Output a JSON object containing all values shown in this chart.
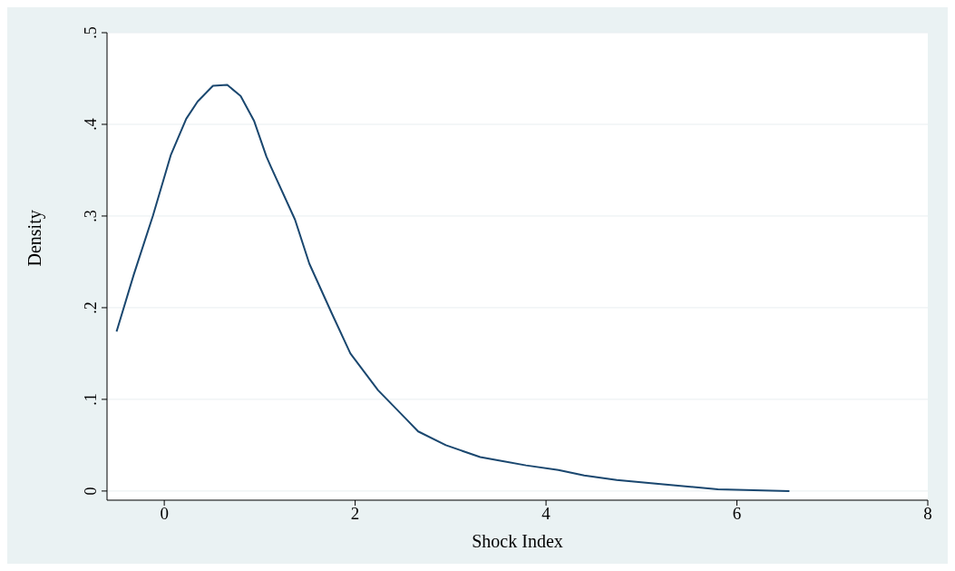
{
  "chart_data": {
    "type": "line",
    "xlabel": "Shock Index",
    "ylabel": "Density",
    "x": [
      -0.5,
      -0.32,
      -0.12,
      0.07,
      0.23,
      0.35,
      0.51,
      0.66,
      0.8,
      0.94,
      1.07,
      1.12,
      1.37,
      1.52,
      1.75,
      1.95,
      2.24,
      2.53,
      2.66,
      2.95,
      3.31,
      3.79,
      4.13,
      4.4,
      4.74,
      5.15,
      5.8,
      6.55
    ],
    "series": [
      {
        "color": "#1a476f",
        "values": [
          0.174,
          0.236,
          0.3,
          0.367,
          0.406,
          0.425,
          0.442,
          0.443,
          0.431,
          0.404,
          0.365,
          0.353,
          0.296,
          0.248,
          0.195,
          0.15,
          0.11,
          0.079,
          0.065,
          0.05,
          0.037,
          0.028,
          0.023,
          0.017,
          0.012,
          0.008,
          0.002,
          0.0
        ]
      }
    ],
    "xlim": [
      -0.6,
      8
    ],
    "xticks": [
      0,
      2,
      4,
      6,
      8
    ],
    "ylim": [
      -0.01,
      0.5
    ],
    "yticks": [
      {
        "value": 0,
        "label": "0"
      },
      {
        "value": 0.1,
        "label": ".1"
      },
      {
        "value": 0.2,
        "label": ".2"
      },
      {
        "value": 0.3,
        "label": ".3"
      },
      {
        "value": 0.4,
        "label": ".4"
      },
      {
        "value": 0.5,
        "label": ".5"
      }
    ],
    "grid": "y",
    "legend": false,
    "marker": "none",
    "line_style": "solid"
  }
}
